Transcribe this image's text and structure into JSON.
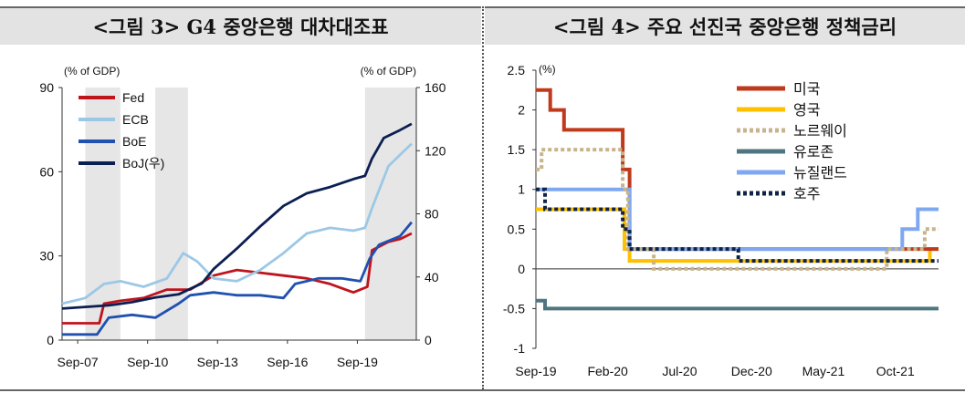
{
  "panels": {
    "left_title": "<그림 3>  G4 중앙은행 대차대조표",
    "right_title": "<그림 4> 주요 선진국 중앙은행 정책금리"
  },
  "colors": {
    "fed": "#c0141c",
    "ecb": "#9cc8e6",
    "boe": "#2050b0",
    "boj": "#0c1f52",
    "us": "#c0391b",
    "uk": "#ffc000",
    "norway": "#c8b48c",
    "euro": "#4f7680",
    "nz": "#7fa8f0",
    "au": "#0f2444",
    "shade": "#e6e6e6"
  },
  "chart_data": [
    {
      "type": "line",
      "title": "",
      "ylabel_left": "(% of GDP)",
      "ylabel_right": "(% of GDP)",
      "x_ticks": [
        "Sep-07",
        "Sep-10",
        "Sep-13",
        "Sep-16",
        "Sep-19"
      ],
      "xlim": [
        2007.0,
        2022.2
      ],
      "ylim_left": [
        0,
        90
      ],
      "ylim_right": [
        0,
        160
      ],
      "yticks_left": [
        0,
        30,
        60,
        90
      ],
      "yticks_right": [
        0,
        40,
        80,
        120,
        160
      ],
      "recession_shading": [
        [
          2008.0,
          2009.5
        ],
        [
          2011.0,
          2012.4
        ],
        [
          2020.0,
          2022.2
        ]
      ],
      "legend_position": "top-left",
      "series": [
        {
          "name": "Fed",
          "axis": "left",
          "points": [
            [
              2007.0,
              6
            ],
            [
              2008.6,
              6
            ],
            [
              2008.8,
              13
            ],
            [
              2009.5,
              14
            ],
            [
              2010.5,
              15
            ],
            [
              2011.5,
              18
            ],
            [
              2012.5,
              18
            ],
            [
              2013.5,
              23
            ],
            [
              2014.5,
              25
            ],
            [
              2015.5,
              24
            ],
            [
              2016.5,
              23
            ],
            [
              2017.5,
              22
            ],
            [
              2018.5,
              20
            ],
            [
              2019.5,
              17
            ],
            [
              2020.1,
              19
            ],
            [
              2020.3,
              32
            ],
            [
              2021.0,
              35
            ],
            [
              2021.5,
              36
            ],
            [
              2022.0,
              38
            ]
          ]
        },
        {
          "name": "ECB",
          "axis": "left",
          "points": [
            [
              2007.0,
              13
            ],
            [
              2008.0,
              15
            ],
            [
              2008.8,
              20
            ],
            [
              2009.5,
              21
            ],
            [
              2010.5,
              19
            ],
            [
              2011.5,
              22
            ],
            [
              2012.2,
              31
            ],
            [
              2012.8,
              28
            ],
            [
              2013.5,
              22
            ],
            [
              2014.5,
              21
            ],
            [
              2015.5,
              25
            ],
            [
              2016.5,
              31
            ],
            [
              2017.5,
              38
            ],
            [
              2018.5,
              40
            ],
            [
              2019.5,
              39
            ],
            [
              2020.0,
              40
            ],
            [
              2020.3,
              47
            ],
            [
              2021.0,
              62
            ],
            [
              2021.5,
              66
            ],
            [
              2022.0,
              70
            ]
          ]
        },
        {
          "name": "BoE",
          "axis": "left",
          "points": [
            [
              2007.0,
              2
            ],
            [
              2008.5,
              2
            ],
            [
              2009.0,
              8
            ],
            [
              2010.0,
              9
            ],
            [
              2011.0,
              8
            ],
            [
              2012.0,
              13
            ],
            [
              2012.5,
              16
            ],
            [
              2013.5,
              17
            ],
            [
              2014.5,
              16
            ],
            [
              2015.5,
              16
            ],
            [
              2016.5,
              15
            ],
            [
              2017.0,
              20
            ],
            [
              2018.0,
              22
            ],
            [
              2019.0,
              22
            ],
            [
              2019.8,
              21
            ],
            [
              2020.2,
              29
            ],
            [
              2020.6,
              34
            ],
            [
              2021.5,
              37
            ],
            [
              2022.0,
              42
            ]
          ]
        },
        {
          "name": "BoJ(우)",
          "axis": "right",
          "points": [
            [
              2007.0,
              20
            ],
            [
              2008.0,
              21
            ],
            [
              2009.0,
              22
            ],
            [
              2010.0,
              24
            ],
            [
              2011.0,
              27
            ],
            [
              2012.0,
              29
            ],
            [
              2013.0,
              36
            ],
            [
              2013.5,
              45
            ],
            [
              2014.5,
              58
            ],
            [
              2015.5,
              72
            ],
            [
              2016.5,
              85
            ],
            [
              2017.5,
              93
            ],
            [
              2018.5,
              97
            ],
            [
              2019.5,
              102
            ],
            [
              2020.0,
              104
            ],
            [
              2020.3,
              115
            ],
            [
              2020.8,
              128
            ],
            [
              2021.5,
              133
            ],
            [
              2022.0,
              137
            ]
          ]
        }
      ]
    },
    {
      "type": "line",
      "title": "",
      "ylabel": "(%)",
      "x_ticks": [
        "Sep-19",
        "Feb-20",
        "Jul-20",
        "Dec-20",
        "May-21",
        "Oct-21"
      ],
      "xlim": [
        2019.667,
        2022.0
      ],
      "ylim": [
        -1,
        2.5
      ],
      "yticks": [
        -1,
        -0.5,
        0,
        0.5,
        1,
        1.5,
        2,
        2.5
      ],
      "ytick_labels": [
        "-1",
        "-0.5",
        "0",
        "0.5",
        "1",
        "1.5",
        "2",
        "2.5"
      ],
      "legend_position": "top-right",
      "series": [
        {
          "name": "미국",
          "style": "solid",
          "points": [
            [
              2019.667,
              2.25
            ],
            [
              2019.75,
              2.25
            ],
            [
              2019.75,
              2.0
            ],
            [
              2019.83,
              2.0
            ],
            [
              2019.83,
              1.75
            ],
            [
              2020.17,
              1.75
            ],
            [
              2020.17,
              1.25
            ],
            [
              2020.21,
              1.25
            ],
            [
              2020.21,
              0.25
            ],
            [
              2021.75,
              0.25
            ],
            [
              2021.75,
              0.25
            ],
            [
              2022.0,
              0.25
            ]
          ]
        },
        {
          "name": "영국",
          "style": "solid",
          "points": [
            [
              2019.667,
              0.75
            ],
            [
              2020.18,
              0.75
            ],
            [
              2020.18,
              0.25
            ],
            [
              2020.21,
              0.25
            ],
            [
              2020.21,
              0.1
            ],
            [
              2021.95,
              0.1
            ],
            [
              2021.95,
              0.25
            ],
            [
              2022.0,
              0.25
            ]
          ]
        },
        {
          "name": "노르웨이",
          "style": "dotted",
          "points": [
            [
              2019.667,
              1.25
            ],
            [
              2019.7,
              1.25
            ],
            [
              2019.7,
              1.5
            ],
            [
              2020.17,
              1.5
            ],
            [
              2020.17,
              1.0
            ],
            [
              2020.2,
              1.0
            ],
            [
              2020.2,
              0.25
            ],
            [
              2020.35,
              0.25
            ],
            [
              2020.35,
              0.0
            ],
            [
              2021.7,
              0.0
            ],
            [
              2021.7,
              0.25
            ],
            [
              2021.92,
              0.25
            ],
            [
              2021.92,
              0.5
            ],
            [
              2022.0,
              0.5
            ]
          ]
        },
        {
          "name": "유로존",
          "style": "solid",
          "points": [
            [
              2019.667,
              -0.4
            ],
            [
              2019.72,
              -0.4
            ],
            [
              2019.72,
              -0.5
            ],
            [
              2022.0,
              -0.5
            ]
          ]
        },
        {
          "name": "뉴질랜드",
          "style": "solid",
          "points": [
            [
              2019.667,
              1.0
            ],
            [
              2020.21,
              1.0
            ],
            [
              2020.21,
              0.25
            ],
            [
              2021.79,
              0.25
            ],
            [
              2021.79,
              0.5
            ],
            [
              2021.88,
              0.5
            ],
            [
              2021.88,
              0.75
            ],
            [
              2022.0,
              0.75
            ]
          ]
        },
        {
          "name": "호주",
          "style": "dotted",
          "points": [
            [
              2019.667,
              1.0
            ],
            [
              2019.72,
              1.0
            ],
            [
              2019.72,
              0.75
            ],
            [
              2020.17,
              0.75
            ],
            [
              2020.17,
              0.5
            ],
            [
              2020.21,
              0.5
            ],
            [
              2020.21,
              0.25
            ],
            [
              2020.84,
              0.25
            ],
            [
              2020.84,
              0.1
            ],
            [
              2022.0,
              0.1
            ]
          ]
        }
      ]
    }
  ]
}
